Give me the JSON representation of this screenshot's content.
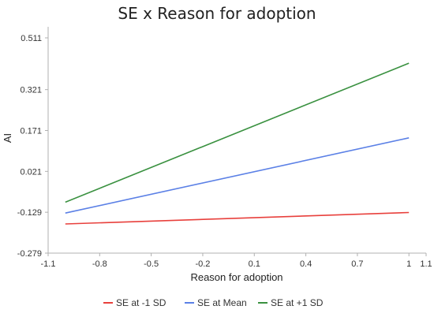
{
  "chart_data": {
    "type": "line",
    "title": "SE x Reason for adoption",
    "xlabel": "Reason for adoption",
    "ylabel": "AI",
    "xlim": [
      -1.1,
      1.1
    ],
    "ylim": [
      -0.279,
      0.511
    ],
    "xticks": [
      -1.1,
      -0.8,
      -0.5,
      -0.2,
      0.1,
      0.4,
      0.7,
      1,
      1.1
    ],
    "xtick_labels": [
      "-1.1",
      "-0.8",
      "-0.5",
      "-0.2",
      "0.1",
      "0.4",
      "0.7",
      "1",
      "1.1"
    ],
    "yticks": [
      -0.279,
      -0.129,
      0.021,
      0.171,
      0.321,
      0.511
    ],
    "ytick_labels": [
      "-0.279",
      "-0.129",
      "0.021",
      "0.171",
      "0.321",
      "0.511"
    ],
    "grid": false,
    "legend_position": "bottom",
    "series": [
      {
        "name": "SE at -1 SD",
        "color": "#e8403c",
        "x": [
          -1,
          1
        ],
        "y": [
          -0.172,
          -0.13
        ]
      },
      {
        "name": "SE at Mean",
        "color": "#5b80e6",
        "x": [
          -1,
          1
        ],
        "y": [
          -0.132,
          0.144
        ]
      },
      {
        "name": "SE at +1 SD",
        "color": "#3a9140",
        "x": [
          -1,
          1
        ],
        "y": [
          -0.092,
          0.418
        ]
      }
    ]
  }
}
